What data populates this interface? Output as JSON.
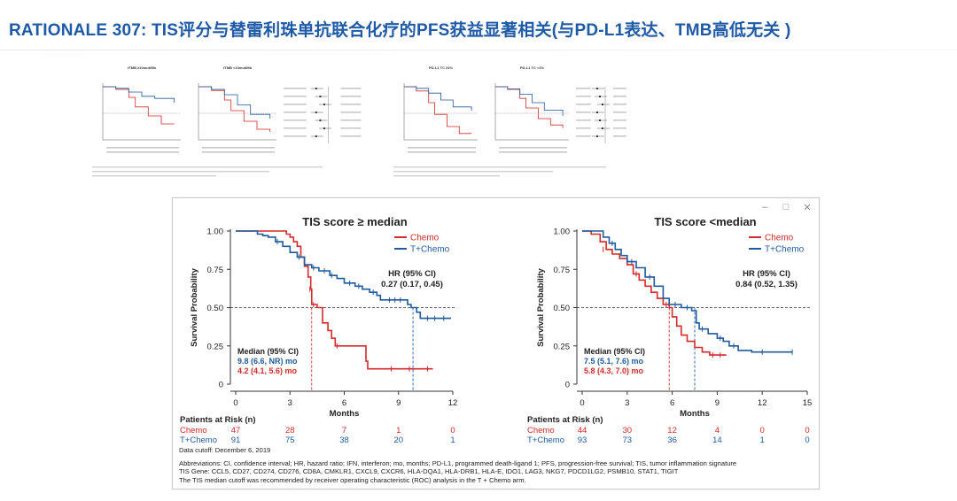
{
  "title": "RATIONALE 307: TIS评分与替雷利珠单抗联合化疗的PFS获益显著相关(与PD-L1表达、TMB高低无关 )",
  "window": {
    "minimize": "–",
    "maximize": "□",
    "close": "✕"
  },
  "colors": {
    "chemo": "#d42a2a",
    "tchemo": "#1f5a9e",
    "title": "#1f5aa6"
  },
  "thumbnails": [
    {
      "panels": [
        {
          "title": "tTMB ≥10mut/Mb",
          "chemo": [
            [
              0,
              1
            ],
            [
              2,
              0.95
            ],
            [
              4,
              0.8
            ],
            [
              5,
              0.62
            ],
            [
              7,
              0.45
            ],
            [
              9,
              0.3
            ],
            [
              11,
              0.3
            ]
          ],
          "tchemo": [
            [
              0,
              1
            ],
            [
              2,
              0.97
            ],
            [
              4,
              0.9
            ],
            [
              6,
              0.82
            ],
            [
              8,
              0.78
            ],
            [
              11,
              0.7
            ]
          ]
        },
        {
          "title": "tTMB <10mut/Mb",
          "chemo": [
            [
              0,
              1
            ],
            [
              2,
              0.93
            ],
            [
              4,
              0.75
            ],
            [
              5,
              0.55
            ],
            [
              7,
              0.35
            ],
            [
              9,
              0.2
            ],
            [
              11,
              0.15
            ]
          ],
          "tchemo": [
            [
              0,
              1
            ],
            [
              2,
              0.95
            ],
            [
              4,
              0.85
            ],
            [
              6,
              0.66
            ],
            [
              8,
              0.48
            ],
            [
              11,
              0.4
            ]
          ]
        }
      ]
    },
    {
      "panels": [
        {
          "title": "PD-L1 TC ≥1%",
          "chemo": [
            [
              0,
              1
            ],
            [
              2,
              0.92
            ],
            [
              4,
              0.7
            ],
            [
              5,
              0.48
            ],
            [
              7,
              0.25
            ],
            [
              9,
              0.12
            ],
            [
              11,
              0.12
            ]
          ],
          "tchemo": [
            [
              0,
              1
            ],
            [
              2,
              0.97
            ],
            [
              4,
              0.88
            ],
            [
              6,
              0.75
            ],
            [
              8,
              0.62
            ],
            [
              11,
              0.55
            ]
          ]
        },
        {
          "title": "PD-L1 TC <1%",
          "chemo": [
            [
              0,
              1
            ],
            [
              2,
              0.95
            ],
            [
              4,
              0.78
            ],
            [
              5,
              0.6
            ],
            [
              7,
              0.4
            ],
            [
              9,
              0.28
            ],
            [
              11,
              0.22
            ]
          ],
          "tchemo": [
            [
              0,
              1
            ],
            [
              2,
              0.96
            ],
            [
              4,
              0.86
            ],
            [
              6,
              0.7
            ],
            [
              8,
              0.56
            ],
            [
              11,
              0.45
            ]
          ]
        }
      ]
    }
  ],
  "chart_data": [
    {
      "type": "line",
      "title": "TIS score ≥ median",
      "xlabel": "Months",
      "ylabel": "Survival Probability",
      "xlim": [
        0,
        12
      ],
      "ylim": [
        0,
        1
      ],
      "xticks": [
        0,
        3,
        6,
        9,
        12
      ],
      "yticks": [
        "0",
        "0.25",
        "0.50",
        "0.75",
        "1.00"
      ],
      "reference_y": 0.5,
      "series": [
        {
          "name": "Chemo",
          "color": "#d42a2a",
          "points": [
            [
              0,
              1
            ],
            [
              2.6,
              1
            ],
            [
              2.8,
              0.98
            ],
            [
              3.0,
              0.96
            ],
            [
              3.2,
              0.93
            ],
            [
              3.4,
              0.9
            ],
            [
              3.6,
              0.83
            ],
            [
              3.8,
              0.77
            ],
            [
              4.0,
              0.7
            ],
            [
              4.15,
              0.62
            ],
            [
              4.2,
              0.57
            ],
            [
              4.2,
              0.52
            ],
            [
              4.5,
              0.5
            ],
            [
              4.8,
              0.4
            ],
            [
              5.1,
              0.35
            ],
            [
              5.3,
              0.3
            ],
            [
              5.5,
              0.25
            ],
            [
              7.0,
              0.25
            ],
            [
              7.2,
              0.15
            ],
            [
              7.3,
              0.1
            ],
            [
              10.9,
              0.1
            ]
          ],
          "censors": [
            [
              4.1,
              0.62
            ],
            [
              4.3,
              0.52
            ],
            [
              5.6,
              0.25
            ],
            [
              8.6,
              0.1
            ],
            [
              9.6,
              0.1
            ],
            [
              10.6,
              0.1
            ]
          ]
        },
        {
          "name": "T+Chemo",
          "color": "#1f5a9e",
          "points": [
            [
              0,
              1
            ],
            [
              0.5,
              1
            ],
            [
              1.2,
              0.98
            ],
            [
              1.5,
              0.97
            ],
            [
              1.8,
              0.96
            ],
            [
              2.2,
              0.93
            ],
            [
              2.6,
              0.9
            ],
            [
              3.0,
              0.86
            ],
            [
              3.4,
              0.83
            ],
            [
              3.8,
              0.78
            ],
            [
              4.2,
              0.76
            ],
            [
              4.6,
              0.74
            ],
            [
              5.2,
              0.71
            ],
            [
              5.6,
              0.69
            ],
            [
              6.0,
              0.66
            ],
            [
              6.6,
              0.64
            ],
            [
              7.0,
              0.62
            ],
            [
              7.4,
              0.6
            ],
            [
              7.8,
              0.58
            ],
            [
              8.0,
              0.55
            ],
            [
              9.3,
              0.55
            ],
            [
              9.5,
              0.52
            ],
            [
              9.7,
              0.5
            ],
            [
              10.0,
              0.47
            ],
            [
              10.2,
              0.43
            ],
            [
              11.9,
              0.43
            ]
          ],
          "censors": [
            [
              2.3,
              0.93
            ],
            [
              3.5,
              0.83
            ],
            [
              4.3,
              0.76
            ],
            [
              4.9,
              0.74
            ],
            [
              5.3,
              0.71
            ],
            [
              6.3,
              0.66
            ],
            [
              6.8,
              0.64
            ],
            [
              7.6,
              0.6
            ],
            [
              8.5,
              0.55
            ],
            [
              8.8,
              0.55
            ],
            [
              9.1,
              0.55
            ],
            [
              10.6,
              0.43
            ],
            [
              11.0,
              0.43
            ],
            [
              11.5,
              0.43
            ]
          ]
        }
      ],
      "medians": [
        {
          "series": "Chemo",
          "x": 4.2,
          "color": "#d42a2a"
        },
        {
          "series": "T+Chemo",
          "x": 9.8,
          "color": "#1f5a9e"
        }
      ],
      "hr_label": "HR (95% CI)",
      "hr_value": "0.27 (0.17, 0.45)",
      "median_label": "Median (95% CI)",
      "median_tchemo": "9.8 (6.6, NR) mo",
      "median_chemo": "4.2 (4.1, 5.6) mo",
      "risk": {
        "label": "Patients at Risk (n)",
        "rows": [
          {
            "name": "Chemo",
            "color": "#d42a2a",
            "values": [
              "47",
              "28",
              "7",
              "1",
              "0"
            ]
          },
          {
            "name": "T+Chemo",
            "color": "#1f5a9e",
            "values": [
              "91",
              "75",
              "38",
              "20",
              "1"
            ]
          }
        ]
      }
    },
    {
      "type": "line",
      "title": "TIS score <median",
      "xlabel": "Months",
      "ylabel": "Survival Probability",
      "xlim": [
        0,
        15
      ],
      "ylim": [
        0,
        1
      ],
      "xticks": [
        0,
        3,
        6,
        9,
        12,
        15
      ],
      "yticks": [
        "0",
        "0.25",
        "0.50",
        "0.75",
        "1.00"
      ],
      "reference_y": 0.5,
      "series": [
        {
          "name": "Chemo",
          "color": "#d42a2a",
          "points": [
            [
              0,
              1
            ],
            [
              0.6,
              0.98
            ],
            [
              1.2,
              0.93
            ],
            [
              1.6,
              0.88
            ],
            [
              2.0,
              0.85
            ],
            [
              2.5,
              0.82
            ],
            [
              3.0,
              0.78
            ],
            [
              3.4,
              0.72
            ],
            [
              3.8,
              0.68
            ],
            [
              4.2,
              0.64
            ],
            [
              4.6,
              0.6
            ],
            [
              5.0,
              0.56
            ],
            [
              5.4,
              0.52
            ],
            [
              5.8,
              0.5
            ],
            [
              6.0,
              0.44
            ],
            [
              6.3,
              0.38
            ],
            [
              6.6,
              0.32
            ],
            [
              7.0,
              0.28
            ],
            [
              7.5,
              0.24
            ],
            [
              8.0,
              0.21
            ],
            [
              8.5,
              0.19
            ],
            [
              9.6,
              0.19
            ]
          ],
          "censors": [
            [
              1.4,
              0.88
            ],
            [
              3.6,
              0.72
            ],
            [
              5.6,
              0.52
            ],
            [
              8.7,
              0.19
            ],
            [
              9.2,
              0.19
            ]
          ]
        },
        {
          "name": "T+Chemo",
          "color": "#1f5a9e",
          "points": [
            [
              0,
              1
            ],
            [
              1.0,
              1
            ],
            [
              1.4,
              0.96
            ],
            [
              1.8,
              0.92
            ],
            [
              2.2,
              0.88
            ],
            [
              2.6,
              0.84
            ],
            [
              3.0,
              0.8
            ],
            [
              3.6,
              0.76
            ],
            [
              4.2,
              0.7
            ],
            [
              4.8,
              0.64
            ],
            [
              5.4,
              0.56
            ],
            [
              5.8,
              0.52
            ],
            [
              6.6,
              0.5
            ],
            [
              7.3,
              0.48
            ],
            [
              7.6,
              0.4
            ],
            [
              7.8,
              0.36
            ],
            [
              8.4,
              0.33
            ],
            [
              9.0,
              0.3
            ],
            [
              9.4,
              0.28
            ],
            [
              9.8,
              0.25
            ],
            [
              10.4,
              0.22
            ],
            [
              11.0,
              0.22
            ],
            [
              11.3,
              0.21
            ],
            [
              14.0,
              0.21
            ]
          ],
          "censors": [
            [
              2.0,
              0.92
            ],
            [
              3.3,
              0.8
            ],
            [
              4.5,
              0.7
            ],
            [
              6.2,
              0.52
            ],
            [
              7.0,
              0.5
            ],
            [
              8.0,
              0.36
            ],
            [
              9.2,
              0.3
            ],
            [
              10.1,
              0.25
            ],
            [
              12.0,
              0.21
            ],
            [
              14.0,
              0.21
            ]
          ]
        }
      ],
      "medians": [
        {
          "series": "Chemo",
          "x": 5.8,
          "color": "#d42a2a"
        },
        {
          "series": "T+Chemo",
          "x": 7.5,
          "color": "#1f5a9e"
        }
      ],
      "hr_label": "HR (95% CI)",
      "hr_value": "0.84 (0.52, 1.35)",
      "median_label": "Median (95% CI)",
      "median_tchemo": "7.5 (5.1, 7.6) mo",
      "median_chemo": "5.8 (4.3, 7.0) mo",
      "risk": {
        "label": "Patients at Risk (n)",
        "rows": [
          {
            "name": "Chemo",
            "color": "#d42a2a",
            "values": [
              "44",
              "30",
              "12",
              "4",
              "0",
              "0"
            ]
          },
          {
            "name": "T+Chemo",
            "color": "#1f5a9e",
            "values": [
              "93",
              "73",
              "36",
              "14",
              "1",
              "0"
            ]
          }
        ]
      }
    }
  ],
  "footnote": {
    "cutoff": "Data cutoff: December 6, 2019",
    "abbrev": "Abbreviations: CI, confidence interval; HR, hazard ratio; IFN, interferon; mo, months; PD-L1, programmed death-ligand 1; PFS, progression-free survival; TIS, tumor inflammation signature",
    "genes": "TIS Gene: CCL5, CD27, CD274, CD276, CD8A, CMKLR1, CXCL9, CXCR6, HLA-DQA1, HLA-DRB1, HLA-E, IDO1, LAG3, NKG7, PDCD1LG2, PSMB10, STAT1, TIGIT",
    "roc": "The TIS median cutoff was recommended by receiver operating characteristic (ROC) analysis in the T + Chemo arm."
  }
}
